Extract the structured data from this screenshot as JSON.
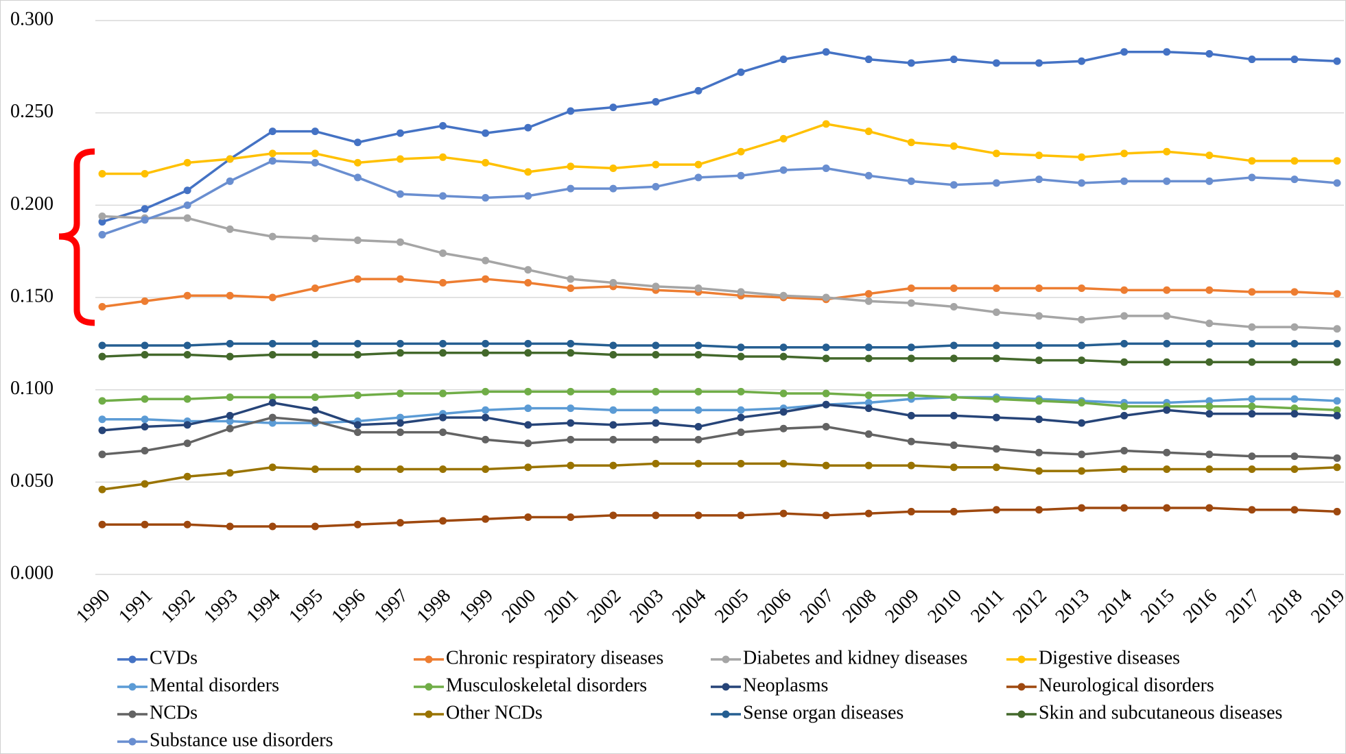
{
  "chart_data": {
    "type": "line",
    "x": [
      1990,
      1991,
      1992,
      1993,
      1994,
      1995,
      1996,
      1997,
      1998,
      1999,
      2000,
      2001,
      2002,
      2003,
      2004,
      2005,
      2006,
      2007,
      2008,
      2009,
      2010,
      2011,
      2012,
      2013,
      2014,
      2015,
      2016,
      2017,
      2018,
      2019
    ],
    "ylim": [
      0,
      0.3
    ],
    "yticks": [
      {
        "value": 0,
        "label": "0.000"
      },
      {
        "value": 0.05,
        "label": "0.050"
      },
      {
        "value": 0.1,
        "label": "0.100"
      },
      {
        "value": 0.15,
        "label": "0.150"
      },
      {
        "value": 0.2,
        "label": "0.200"
      },
      {
        "value": 0.25,
        "label": "0.250"
      },
      {
        "value": 0.3,
        "label": "0.300"
      }
    ],
    "grid": true,
    "legend": "bottom",
    "series": [
      {
        "name": "CVDs",
        "color": "#4472c4",
        "values": [
          0.191,
          0.198,
          0.208,
          0.225,
          0.24,
          0.24,
          0.234,
          0.239,
          0.243,
          0.239,
          0.242,
          0.251,
          0.253,
          0.256,
          0.262,
          0.272,
          0.279,
          0.283,
          0.279,
          0.277,
          0.279,
          0.277,
          0.277,
          0.278,
          0.283,
          0.283,
          0.282,
          0.279,
          0.279,
          0.278
        ]
      },
      {
        "name": "Chronic respiratory diseases",
        "color": "#ed7d31",
        "values": [
          0.145,
          0.148,
          0.151,
          0.151,
          0.15,
          0.155,
          0.16,
          0.16,
          0.158,
          0.16,
          0.158,
          0.155,
          0.156,
          0.154,
          0.153,
          0.151,
          0.15,
          0.149,
          0.152,
          0.155,
          0.155,
          0.155,
          0.155,
          0.155,
          0.154,
          0.154,
          0.154,
          0.153,
          0.153,
          0.152
        ]
      },
      {
        "name": "Diabetes and kidney diseases",
        "color": "#a5a5a5",
        "values": [
          0.194,
          0.193,
          0.193,
          0.187,
          0.183,
          0.182,
          0.181,
          0.18,
          0.174,
          0.17,
          0.165,
          0.16,
          0.158,
          0.156,
          0.155,
          0.153,
          0.151,
          0.15,
          0.148,
          0.147,
          0.145,
          0.142,
          0.14,
          0.138,
          0.14,
          0.14,
          0.136,
          0.134,
          0.134,
          0.133
        ]
      },
      {
        "name": "Digestive diseases",
        "color": "#ffc000",
        "values": [
          0.217,
          0.217,
          0.223,
          0.225,
          0.228,
          0.228,
          0.223,
          0.225,
          0.226,
          0.223,
          0.218,
          0.221,
          0.22,
          0.222,
          0.222,
          0.229,
          0.236,
          0.244,
          0.24,
          0.234,
          0.232,
          0.228,
          0.227,
          0.226,
          0.228,
          0.229,
          0.227,
          0.224,
          0.224,
          0.224
        ]
      },
      {
        "name": "Mental disorders",
        "color": "#5b9bd5",
        "values": [
          0.084,
          0.084,
          0.083,
          0.083,
          0.082,
          0.082,
          0.083,
          0.085,
          0.087,
          0.089,
          0.09,
          0.09,
          0.089,
          0.089,
          0.089,
          0.089,
          0.09,
          0.092,
          0.093,
          0.095,
          0.096,
          0.096,
          0.095,
          0.094,
          0.093,
          0.093,
          0.094,
          0.095,
          0.095,
          0.094
        ]
      },
      {
        "name": "Musculoskeletal disorders",
        "color": "#70ad47",
        "values": [
          0.094,
          0.095,
          0.095,
          0.096,
          0.096,
          0.096,
          0.097,
          0.098,
          0.098,
          0.099,
          0.099,
          0.099,
          0.099,
          0.099,
          0.099,
          0.099,
          0.098,
          0.098,
          0.097,
          0.097,
          0.096,
          0.095,
          0.094,
          0.093,
          0.091,
          0.091,
          0.091,
          0.091,
          0.09,
          0.089
        ]
      },
      {
        "name": "Neoplasms",
        "color": "#264478",
        "values": [
          0.078,
          0.08,
          0.081,
          0.086,
          0.093,
          0.089,
          0.081,
          0.082,
          0.085,
          0.085,
          0.081,
          0.082,
          0.081,
          0.082,
          0.08,
          0.085,
          0.088,
          0.092,
          0.09,
          0.086,
          0.086,
          0.085,
          0.084,
          0.082,
          0.086,
          0.089,
          0.087,
          0.087,
          0.087,
          0.086
        ]
      },
      {
        "name": "Neurological disorders",
        "color": "#9e480e",
        "values": [
          0.027,
          0.027,
          0.027,
          0.026,
          0.026,
          0.026,
          0.027,
          0.028,
          0.029,
          0.03,
          0.031,
          0.031,
          0.032,
          0.032,
          0.032,
          0.032,
          0.033,
          0.032,
          0.033,
          0.034,
          0.034,
          0.035,
          0.035,
          0.036,
          0.036,
          0.036,
          0.036,
          0.035,
          0.035,
          0.034
        ]
      },
      {
        "name": "NCDs",
        "color": "#636363",
        "values": [
          0.065,
          0.067,
          0.071,
          0.079,
          0.085,
          0.083,
          0.077,
          0.077,
          0.077,
          0.073,
          0.071,
          0.073,
          0.073,
          0.073,
          0.073,
          0.077,
          0.079,
          0.08,
          0.076,
          0.072,
          0.07,
          0.068,
          0.066,
          0.065,
          0.067,
          0.066,
          0.065,
          0.064,
          0.064,
          0.063
        ]
      },
      {
        "name": "Other NCDs",
        "color": "#997300",
        "values": [
          0.046,
          0.049,
          0.053,
          0.055,
          0.058,
          0.057,
          0.057,
          0.057,
          0.057,
          0.057,
          0.058,
          0.059,
          0.059,
          0.06,
          0.06,
          0.06,
          0.06,
          0.059,
          0.059,
          0.059,
          0.058,
          0.058,
          0.056,
          0.056,
          0.057,
          0.057,
          0.057,
          0.057,
          0.057,
          0.058
        ]
      },
      {
        "name": "Sense organ diseases",
        "color": "#255e91",
        "values": [
          0.124,
          0.124,
          0.124,
          0.125,
          0.125,
          0.125,
          0.125,
          0.125,
          0.125,
          0.125,
          0.125,
          0.125,
          0.124,
          0.124,
          0.124,
          0.123,
          0.123,
          0.123,
          0.123,
          0.123,
          0.124,
          0.124,
          0.124,
          0.124,
          0.125,
          0.125,
          0.125,
          0.125,
          0.125,
          0.125
        ]
      },
      {
        "name": "Skin and subcutaneous diseases",
        "color": "#43682b",
        "values": [
          0.118,
          0.119,
          0.119,
          0.118,
          0.119,
          0.119,
          0.119,
          0.12,
          0.12,
          0.12,
          0.12,
          0.12,
          0.119,
          0.119,
          0.119,
          0.118,
          0.118,
          0.117,
          0.117,
          0.117,
          0.117,
          0.117,
          0.116,
          0.116,
          0.115,
          0.115,
          0.115,
          0.115,
          0.115,
          0.115
        ]
      },
      {
        "name": "Substance use disorders",
        "color": "#698ed0",
        "values": [
          0.184,
          0.192,
          0.2,
          0.213,
          0.224,
          0.223,
          0.215,
          0.206,
          0.205,
          0.204,
          0.205,
          0.209,
          0.209,
          0.21,
          0.215,
          0.216,
          0.219,
          0.22,
          0.216,
          0.213,
          0.211,
          0.212,
          0.214,
          0.212,
          0.213,
          0.213,
          0.213,
          0.215,
          0.214,
          0.212
        ]
      }
    ]
  }
}
